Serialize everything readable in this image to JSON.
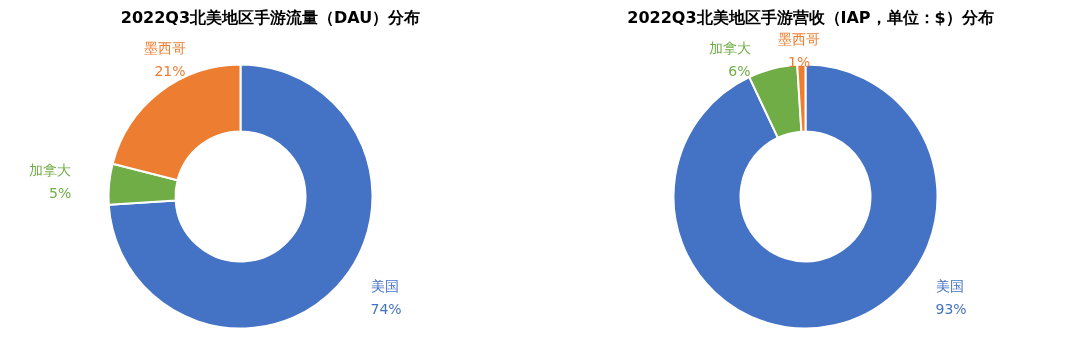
{
  "chart_data": [
    {
      "type": "donut",
      "title": "2022Q3北美地区手游流量（DAU）分布",
      "categories": [
        "美国",
        "加拿大",
        "墨西哥"
      ],
      "values": [
        74,
        5,
        21
      ],
      "colors": [
        "#4472c4",
        "#70ad47",
        "#ed7d31"
      ],
      "value_labels": [
        "74%",
        "5%",
        "21%"
      ],
      "legend": false
    },
    {
      "type": "donut",
      "title": "2022Q3北美地区手游营收（IAP，单位：$）分布",
      "categories": [
        "美国",
        "加拿大",
        "墨西哥"
      ],
      "values": [
        93,
        6,
        1
      ],
      "colors": [
        "#4472c4",
        "#70ad47",
        "#ed7d31"
      ],
      "value_labels": [
        "93%",
        "6%",
        "1%"
      ],
      "legend": false
    }
  ]
}
